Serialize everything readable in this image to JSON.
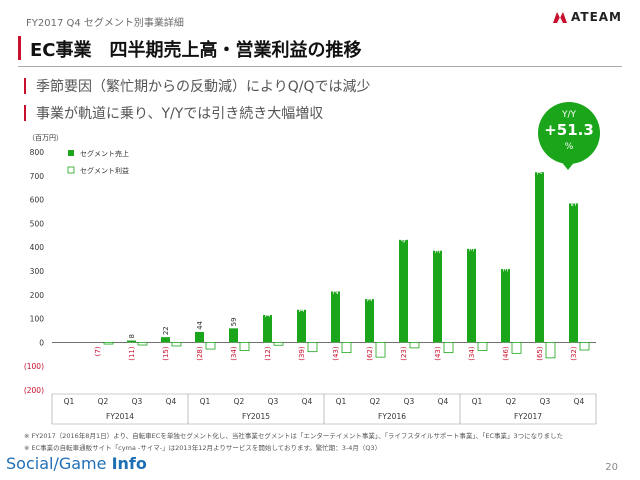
{
  "header": {
    "subtitle": "FY2017 Q4 セグメント別事業詳細",
    "logo_text": "ATEAM",
    "title": "EC事業　四半期売上高・営業利益の推移"
  },
  "bullets": [
    "季節要因（繁忙期からの反動減）によりQ/Qでは減少",
    "事業が軌道に乗り、Y/Yでは引き続き大幅増収"
  ],
  "yoy_badge": {
    "label": "Y/Y",
    "value": "+51.3",
    "unit": "%"
  },
  "chart_data": {
    "type": "bar",
    "unit_label": "（百万円）",
    "ylim": [
      -200,
      800
    ],
    "y_ticks": [
      {
        "v": 800,
        "label": "800"
      },
      {
        "v": 700,
        "label": "700"
      },
      {
        "v": 600,
        "label": "600"
      },
      {
        "v": 500,
        "label": "500"
      },
      {
        "v": 400,
        "label": "400"
      },
      {
        "v": 300,
        "label": "300"
      },
      {
        "v": 200,
        "label": "200"
      },
      {
        "v": 100,
        "label": "100"
      },
      {
        "v": 0,
        "label": "0"
      },
      {
        "v": -100,
        "label": "(100)"
      },
      {
        "v": -200,
        "label": "(200)"
      }
    ],
    "categories": [
      "Q1",
      "Q2",
      "Q3",
      "Q4",
      "Q1",
      "Q2",
      "Q3",
      "Q4",
      "Q1",
      "Q2",
      "Q3",
      "Q4",
      "Q1",
      "Q2",
      "Q3",
      "Q4"
    ],
    "groups": [
      {
        "label": "FY2014",
        "start": 0,
        "end": 3
      },
      {
        "label": "FY2015",
        "start": 4,
        "end": 7
      },
      {
        "label": "FY2016",
        "start": 8,
        "end": 11
      },
      {
        "label": "FY2017",
        "start": 12,
        "end": 15
      }
    ],
    "series": [
      {
        "name": "セグメント売上",
        "color": "#1aa51a",
        "values": [
          0,
          0,
          8,
          22,
          44,
          59,
          115,
          137,
          214,
          182,
          431,
          385,
          393,
          308,
          715,
          584
        ],
        "labels": [
          "",
          "",
          "8",
          "22",
          "44",
          "59",
          "115",
          "137",
          "214",
          "182",
          "431",
          "385",
          "393",
          "308",
          "715",
          "584"
        ]
      },
      {
        "name": "セグメント利益",
        "color": "#ffffff",
        "stroke": "#1aa51a",
        "values": [
          0,
          -7,
          -11,
          -15,
          -28,
          -34,
          -12,
          -39,
          -43,
          -62,
          -23,
          -43,
          -34,
          -46,
          -65,
          -32
        ],
        "labels": [
          "",
          "(7)",
          "(11)",
          "(15)",
          "(28)",
          "(34)",
          "(12)",
          "(39)",
          "(43)",
          "(62)",
          "(23)",
          "(43)",
          "(34)",
          "(46)",
          "(65)",
          "(32)"
        ]
      }
    ],
    "legend_placement": "top-left",
    "grid": false
  },
  "notes": [
    "※ FY2017（2016年8月1日）より、自転車ECを単独セグメント化し、当社事業セグメントは「エンターテイメント事業」、「ライフスタイルサポート事業」、「EC事業」3つになりました",
    "※ EC事業の自転車通販サイト「cyma -サイマ-」は2013年12月よりサービスを開始しております。繁忙期：3-4月（Q3）"
  ],
  "footer": {
    "brand_a": "Social",
    "brand_b": "Game",
    "brand_c": "Info",
    "page_number": "20"
  }
}
